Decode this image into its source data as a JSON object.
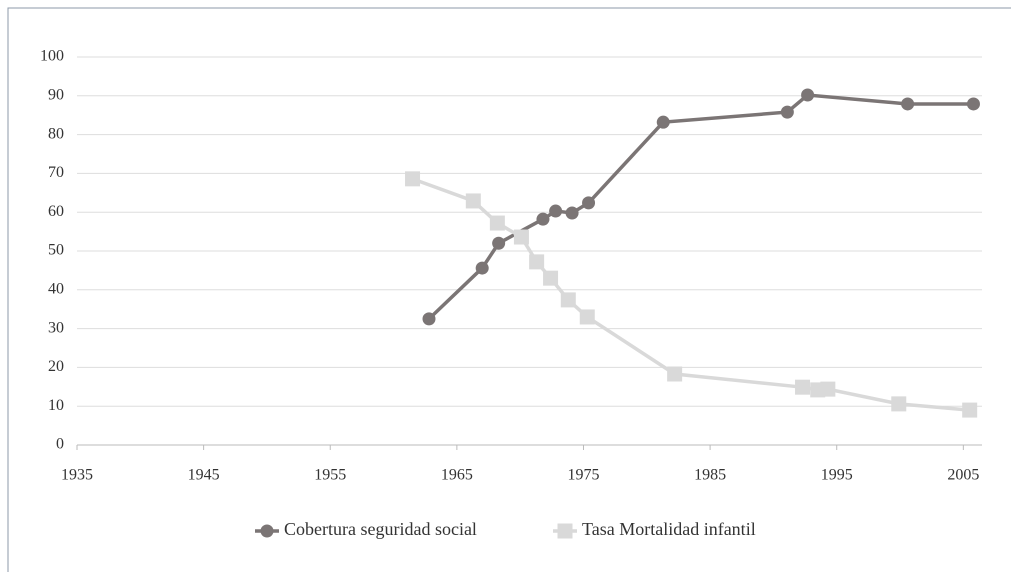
{
  "chart_data": {
    "type": "line",
    "xlim": [
      1935,
      2006
    ],
    "xticks": [
      1935,
      1945,
      1955,
      1965,
      1975,
      1985,
      1995,
      2005
    ],
    "ylim": [
      0,
      100
    ],
    "yticks": [
      0,
      10,
      20,
      30,
      40,
      50,
      60,
      70,
      80,
      90,
      100
    ],
    "grid": true,
    "legend": "bottom",
    "series": [
      {
        "name": "Cobertura seguridad social",
        "color": "#7b7575",
        "marker": "circle",
        "x": [
          1962.8,
          1967,
          1968.3,
          1971.8,
          1972.8,
          1974.1,
          1975.4,
          1981.3,
          1991.1,
          1992.7,
          2000.6,
          2005.8
        ],
        "values": [
          32.5,
          45.6,
          52,
          58.2,
          60.3,
          59.8,
          62.4,
          83.2,
          85.8,
          90.2,
          87.9,
          87.9
        ]
      },
      {
        "name": "Tasa Mortalidad infantil",
        "color": "#d9d9d9",
        "marker": "square",
        "x": [
          1961.5,
          1966.3,
          1968.2,
          1970.1,
          1971.3,
          1972.4,
          1973.8,
          1975.3,
          1982.2,
          1992.3,
          1993.5,
          1994.3,
          1999.9,
          2005.5
        ],
        "values": [
          68.6,
          62.9,
          57.2,
          53.6,
          47.2,
          43,
          37.4,
          33,
          18.3,
          14.9,
          14.2,
          14.4,
          10.6,
          9
        ]
      }
    ]
  }
}
